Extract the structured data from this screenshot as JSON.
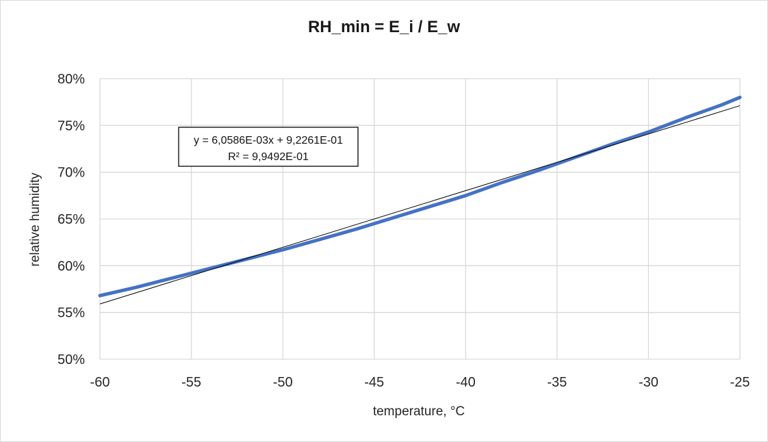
{
  "chart_data": {
    "type": "line",
    "title": "RH_min = E_i / E_w",
    "xlabel": "temperature, °C",
    "ylabel": "relative humidity",
    "xlim": [
      -60,
      -25
    ],
    "ylim": [
      0.5,
      0.8
    ],
    "x_ticks": [
      -60,
      -55,
      -50,
      -45,
      -40,
      -35,
      -30,
      -25
    ],
    "y_ticks": [
      0.5,
      0.55,
      0.6,
      0.65,
      0.7,
      0.75,
      0.8
    ],
    "x_tick_labels": [
      "-60",
      "-55",
      "-50",
      "-45",
      "-40",
      "-35",
      "-30",
      "-25"
    ],
    "y_tick_labels": [
      "50%",
      "55%",
      "60%",
      "65%",
      "70%",
      "75%",
      "80%"
    ],
    "grid": true,
    "series": [
      {
        "color": "#4472c4",
        "x": [
          -60,
          -58,
          -56,
          -54,
          -52,
          -50,
          -48,
          -46,
          -44,
          -42,
          -40,
          -38,
          -36,
          -34,
          -32,
          -30,
          -28,
          -26,
          -25
        ],
        "y": [
          0.568,
          0.577,
          0.587,
          0.597,
          0.607,
          0.617,
          0.628,
          0.639,
          0.651,
          0.663,
          0.675,
          0.689,
          0.702,
          0.716,
          0.73,
          0.743,
          0.758,
          0.772,
          0.78
        ]
      }
    ],
    "trendline": {
      "color": "#000000",
      "slope": 0.0060586,
      "intercept": 0.92261,
      "equation": "y = 6,0586E-03x + 9,2261E-01",
      "r_squared": "R² = 9,9492E-01"
    }
  }
}
